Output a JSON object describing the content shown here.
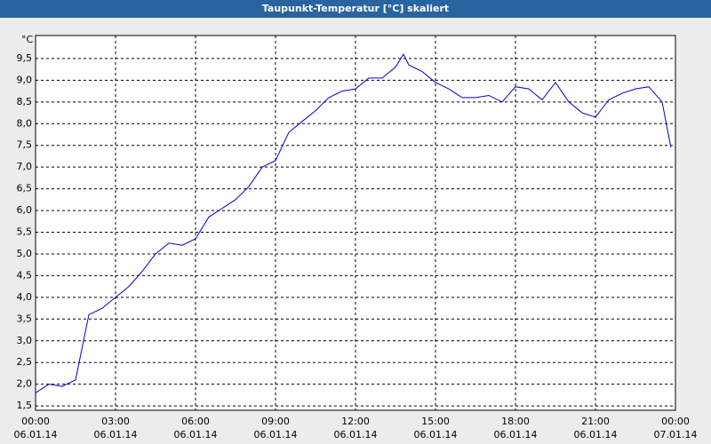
{
  "chart_data": {
    "type": "line",
    "title": "Taupunkt-Temperatur [°C] skaliert",
    "y_label": "°C",
    "x": [
      0,
      0.5,
      1,
      1.5,
      2,
      2.5,
      3,
      3.5,
      4,
      4.5,
      5,
      5.5,
      6,
      6.5,
      7,
      7.5,
      8,
      8.5,
      9,
      9.5,
      10,
      10.5,
      11,
      11.5,
      12,
      12.5,
      13,
      13.5,
      13.8,
      14,
      14.5,
      15,
      15.5,
      16,
      16.5,
      17,
      17.5,
      18,
      18.5,
      19,
      19.5,
      20,
      20.5,
      21,
      21.5,
      22,
      22.5,
      23,
      23.5,
      23.83
    ],
    "series": [
      {
        "name": "Taupunkt",
        "color": "#0000cc",
        "values": [
          1.8,
          2.0,
          1.95,
          2.1,
          3.6,
          3.75,
          4.0,
          4.25,
          4.6,
          5.0,
          5.25,
          5.2,
          5.35,
          5.85,
          6.05,
          6.25,
          6.55,
          7.0,
          7.15,
          7.8,
          8.05,
          8.3,
          8.6,
          8.75,
          8.8,
          9.05,
          9.05,
          9.3,
          9.6,
          9.35,
          9.2,
          8.95,
          8.8,
          8.6,
          8.6,
          8.65,
          8.5,
          8.85,
          8.8,
          8.55,
          8.95,
          8.5,
          8.25,
          8.15,
          8.55,
          8.7,
          8.8,
          8.85,
          8.5,
          7.45
        ]
      }
    ],
    "xlim": [
      0,
      24
    ],
    "ylim": [
      1.4,
      10.03
    ],
    "grid": true,
    "xticks": [
      {
        "value": 0,
        "label": "00:00",
        "date": "06.01.14"
      },
      {
        "value": 3,
        "label": "03:00",
        "date": "06.01.14"
      },
      {
        "value": 6,
        "label": "06:00",
        "date": "06.01.14"
      },
      {
        "value": 9,
        "label": "09:00",
        "date": "06.01.14"
      },
      {
        "value": 12,
        "label": "12:00",
        "date": "06.01.14"
      },
      {
        "value": 15,
        "label": "15:00",
        "date": "06.01.14"
      },
      {
        "value": 18,
        "label": "18:00",
        "date": "06.01.14"
      },
      {
        "value": 21,
        "label": "21:00",
        "date": "06.01.14"
      },
      {
        "value": 24,
        "label": "00:00",
        "date": "07.01.14"
      }
    ],
    "yticks": [
      {
        "value": 1.5,
        "label": "1,5"
      },
      {
        "value": 2,
        "label": "2,0"
      },
      {
        "value": 2.5,
        "label": "2,5"
      },
      {
        "value": 3,
        "label": "3,0"
      },
      {
        "value": 3.5,
        "label": "3,5"
      },
      {
        "value": 4,
        "label": "4,0"
      },
      {
        "value": 4.5,
        "label": "4,5"
      },
      {
        "value": 5,
        "label": "5,0"
      },
      {
        "value": 5.5,
        "label": "5,5"
      },
      {
        "value": 6,
        "label": "6,0"
      },
      {
        "value": 6.5,
        "label": "6,5"
      },
      {
        "value": 7,
        "label": "7,0"
      },
      {
        "value": 7.5,
        "label": "7,5"
      },
      {
        "value": 8,
        "label": "8,0"
      },
      {
        "value": 8.5,
        "label": "8,5"
      },
      {
        "value": 9,
        "label": "9,0"
      },
      {
        "value": 9.5,
        "label": "9,5"
      }
    ]
  }
}
